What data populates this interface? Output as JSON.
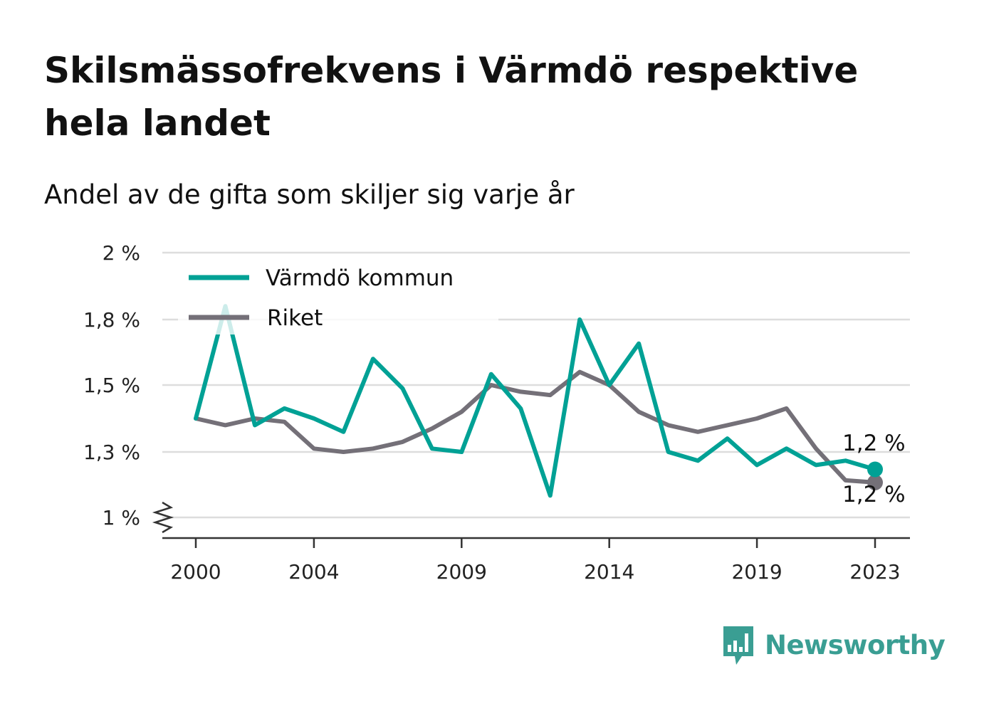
{
  "title": "Skilsmässofrekvens i Värmdö respektive hela landet",
  "subtitle": "Andel av de gifta som skiljer sig varje år",
  "brand": {
    "name": "Newsworthy",
    "icon": "newsworthy-logo-icon",
    "color": "#3a9e93"
  },
  "colors": {
    "varmdo": "#00a195",
    "riket": "#747078",
    "grid": "#dddddd",
    "axis": "#333333"
  },
  "chart_data": {
    "type": "line",
    "title": "Skilsmässofrekvens i Värmdö respektive hela landet",
    "subtitle": "Andel av de gifta som skiljer sig varje år",
    "xlabel": "",
    "ylabel": "",
    "x": [
      2000,
      2001,
      2002,
      2003,
      2004,
      2005,
      2006,
      2007,
      2008,
      2009,
      2010,
      2011,
      2012,
      2013,
      2014,
      2015,
      2016,
      2017,
      2018,
      2019,
      2020,
      2021,
      2022,
      2023
    ],
    "x_ticks": [
      2000,
      2004,
      2009,
      2014,
      2019,
      2023
    ],
    "x_tick_labels": [
      "2000",
      "2004",
      "2009",
      "2014",
      "2019",
      "2023"
    ],
    "y_ticks": [
      1.0,
      1.3,
      1.5,
      1.8,
      2.0
    ],
    "y_tick_labels": [
      "1 %",
      "1,3 %",
      "1,5 %",
      "1,8 %",
      "2 %"
    ],
    "ylim": [
      1.0,
      2.0
    ],
    "y_axis_break": true,
    "grid": true,
    "legend": "top-left",
    "series": [
      {
        "name": "Värmdö kommun",
        "values": [
          1.4,
          1.84,
          1.38,
          1.43,
          1.4,
          1.36,
          1.62,
          1.49,
          1.31,
          1.3,
          1.55,
          1.43,
          1.1,
          1.8,
          1.5,
          1.69,
          1.3,
          1.26,
          1.34,
          1.24,
          1.31,
          1.24,
          1.26,
          1.22
        ],
        "end_label": "1,2 %"
      },
      {
        "name": "Riket",
        "values": [
          1.4,
          1.38,
          1.4,
          1.39,
          1.31,
          1.3,
          1.31,
          1.33,
          1.37,
          1.42,
          1.5,
          1.48,
          1.47,
          1.56,
          1.5,
          1.42,
          1.38,
          1.36,
          1.38,
          1.4,
          1.43,
          1.31,
          1.17,
          1.16
        ],
        "end_label": "1,2 %"
      }
    ]
  }
}
